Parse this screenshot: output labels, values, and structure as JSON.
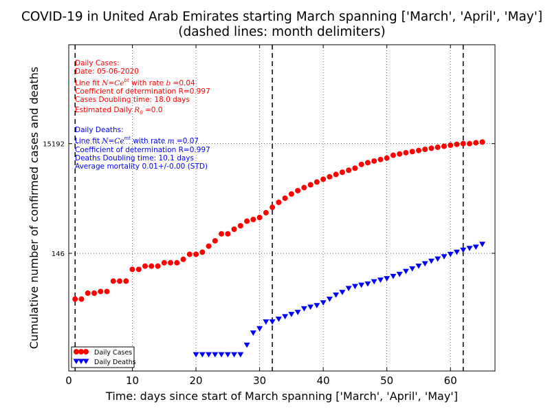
{
  "colors": {
    "cases": "#ff0000",
    "deaths": "#0000ff",
    "delimiter": "#000000",
    "grid": "#000000"
  },
  "chart_data": {
    "type": "scatter",
    "title_line1": "COVID-19 in United Arab Emirates starting March spanning ['March', 'April', 'May']",
    "title_line2": "(dashed lines: month delimiters)",
    "xlabel": "Time: days since start of March spanning ['March', 'April', 'May']",
    "ylabel": "Cumulative number of confirmed cases and deaths",
    "xlim": [
      0,
      67
    ],
    "yscale": "log",
    "ylim": [
      1,
      1000000
    ],
    "x_ticks": [
      0,
      10,
      20,
      30,
      40,
      50,
      60
    ],
    "x_tick_labels": [
      "0",
      "10",
      "20",
      "30",
      "40",
      "50",
      "60"
    ],
    "y_ticks": [
      146,
      15192
    ],
    "y_tick_labels": [
      "146",
      "15192"
    ],
    "grid": true,
    "month_delimiters": [
      1,
      32,
      62
    ],
    "legend_placement": "lower-left",
    "series": [
      {
        "name": "Daily Cases",
        "marker": "circle",
        "x": [
          1,
          2,
          3,
          4,
          5,
          6,
          7,
          8,
          9,
          10,
          11,
          12,
          13,
          14,
          15,
          16,
          17,
          18,
          19,
          20,
          21,
          22,
          23,
          24,
          25,
          26,
          27,
          28,
          29,
          30,
          31,
          32,
          33,
          34,
          35,
          36,
          37,
          38,
          39,
          40,
          41,
          42,
          43,
          44,
          45,
          46,
          47,
          48,
          49,
          50,
          51,
          52,
          53,
          54,
          55,
          56,
          57,
          58,
          59,
          60,
          61,
          62,
          63,
          64,
          65
        ],
        "values": [
          21,
          21,
          27,
          27,
          29,
          29,
          45,
          45,
          45,
          74,
          74,
          85,
          85,
          85,
          98,
          98,
          98,
          113,
          140,
          140,
          153,
          198,
          248,
          333,
          333,
          405,
          468,
          570,
          611,
          664,
          814,
          1024,
          1264,
          1505,
          1799,
          2076,
          2359,
          2659,
          2990,
          3360,
          3736,
          4123,
          4521,
          4933,
          5365,
          6302,
          6781,
          7265,
          7755,
          8238,
          9281,
          9813,
          10349,
          10839,
          11380,
          11929,
          12481,
          13038,
          13599,
          14163,
          14730,
          15192,
          15192,
          15740,
          16240
        ]
      },
      {
        "name": "Daily Deaths",
        "marker": "triangle-down",
        "x": [
          20,
          21,
          22,
          23,
          24,
          25,
          26,
          27,
          28,
          29,
          30,
          31,
          32,
          33,
          34,
          35,
          36,
          37,
          38,
          39,
          40,
          41,
          42,
          43,
          44,
          45,
          46,
          47,
          48,
          49,
          50,
          51,
          52,
          53,
          54,
          55,
          56,
          57,
          58,
          59,
          60,
          61,
          62,
          63,
          64,
          65
        ],
        "values": [
          2,
          2,
          2,
          2,
          2,
          2,
          2,
          2,
          3,
          5,
          6,
          8,
          8,
          9,
          10,
          11,
          12,
          14,
          15,
          16,
          18,
          21,
          25,
          28,
          33,
          36,
          38,
          40,
          44,
          47,
          50,
          55,
          60,
          68,
          76,
          85,
          94,
          105,
          115,
          127,
          140,
          153,
          167,
          180,
          190,
          214
        ]
      }
    ],
    "annotations": {
      "cases": [
        "Daily Cases:",
        "Date: 05-06-2020",
        "Line fit N=Ce^bt with rate b=0.04",
        "Coefficient of determination R=0.997",
        "Cases Doubling time: 18.0 days",
        "Estimated Daily R_0=0.0"
      ],
      "deaths": [
        "Daily Deaths:",
        "Line fit N=Ce^mt with rate m=0.07",
        "Coefficient of determination R=0.997",
        "Deaths Doubling time: 10.1 days",
        "Average mortality 0.01+/-0.00 (STD)"
      ]
    }
  }
}
